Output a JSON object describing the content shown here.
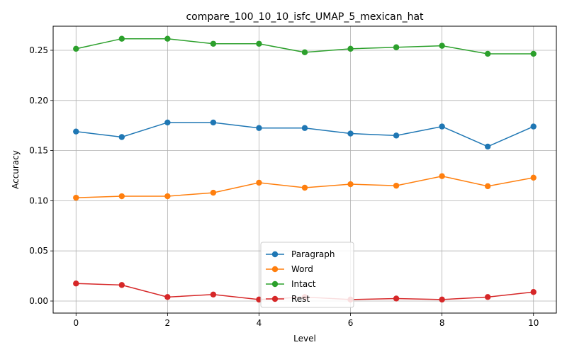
{
  "chart_data": {
    "type": "line",
    "title": "compare_100_10_10_isfc_UMAP_5_mexican_hat",
    "xlabel": "Level",
    "ylabel": "Accuracy",
    "x": [
      0,
      1,
      2,
      3,
      4,
      5,
      6,
      7,
      8,
      9,
      10
    ],
    "xlim": [
      -0.5,
      10.5
    ],
    "ylim": [
      -0.012,
      0.274
    ],
    "xticks": [
      0,
      2,
      4,
      6,
      8,
      10
    ],
    "xtick_labels": [
      "0",
      "2",
      "4",
      "6",
      "8",
      "10"
    ],
    "yticks": [
      0.0,
      0.05,
      0.1,
      0.15,
      0.2,
      0.25
    ],
    "ytick_labels": [
      "0.00",
      "0.05",
      "0.10",
      "0.15",
      "0.20",
      "0.25"
    ],
    "grid": true,
    "legend_position": "lower center",
    "series": [
      {
        "name": "Paragraph",
        "color": "#1f77b4",
        "values": [
          0.169,
          0.1635,
          0.178,
          0.178,
          0.1725,
          0.1725,
          0.167,
          0.165,
          0.174,
          0.154,
          0.174
        ]
      },
      {
        "name": "Word",
        "color": "#ff7f0e",
        "values": [
          0.103,
          0.1045,
          0.1045,
          0.108,
          0.118,
          0.113,
          0.1165,
          0.115,
          0.1245,
          0.1145,
          0.123
        ]
      },
      {
        "name": "Intact",
        "color": "#2ca02c",
        "values": [
          0.2515,
          0.2615,
          0.2615,
          0.2565,
          0.2565,
          0.248,
          0.2515,
          0.253,
          0.2545,
          0.2465,
          0.2465
        ]
      },
      {
        "name": "Rest",
        "color": "#d62728",
        "values": [
          0.0175,
          0.016,
          0.004,
          0.0065,
          0.0015,
          0.004,
          0.0015,
          0.0025,
          0.0015,
          0.004,
          0.009
        ]
      }
    ]
  }
}
